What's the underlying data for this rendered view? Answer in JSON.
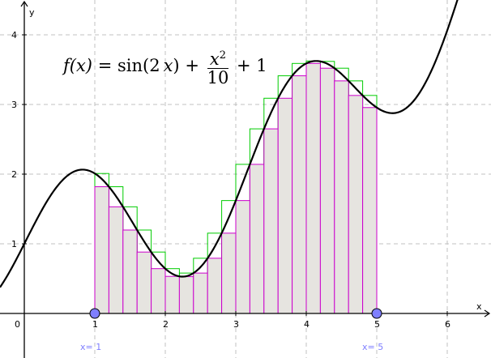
{
  "chart_data": {
    "type": "line",
    "function": {
      "formula": "sin(2x) + x^2/10 + 1",
      "latex_parts": {
        "lhs": "f(x)",
        "eq": "=",
        "sin": "sin(2",
        "var": "x",
        "close": ")",
        "plus": "+",
        "num_var": "x",
        "num_exp": "2",
        "den": "10",
        "tail": "+ 1"
      }
    },
    "xlabel": "x",
    "ylabel": "y",
    "xlim": [
      -0.35,
      6.65
    ],
    "ylim": [
      -0.62,
      4.5
    ],
    "x_ticks": [
      "0",
      "1",
      "2",
      "3",
      "4",
      "5",
      "6"
    ],
    "y_ticks": [
      "1",
      "2",
      "3",
      "4"
    ],
    "grid": true,
    "interval": {
      "a": 1,
      "b": 5,
      "n": 20
    },
    "upper_sum_color": "#00cc00",
    "lower_sum_color": "#cc00cc",
    "bar_fill": "#e6e4e0",
    "curve_color": "#000000",
    "sliders": [
      {
        "label": "x= 1",
        "value": 1
      },
      {
        "label": "x= 5",
        "value": 5
      }
    ],
    "slider_color": "#7f7fff"
  }
}
